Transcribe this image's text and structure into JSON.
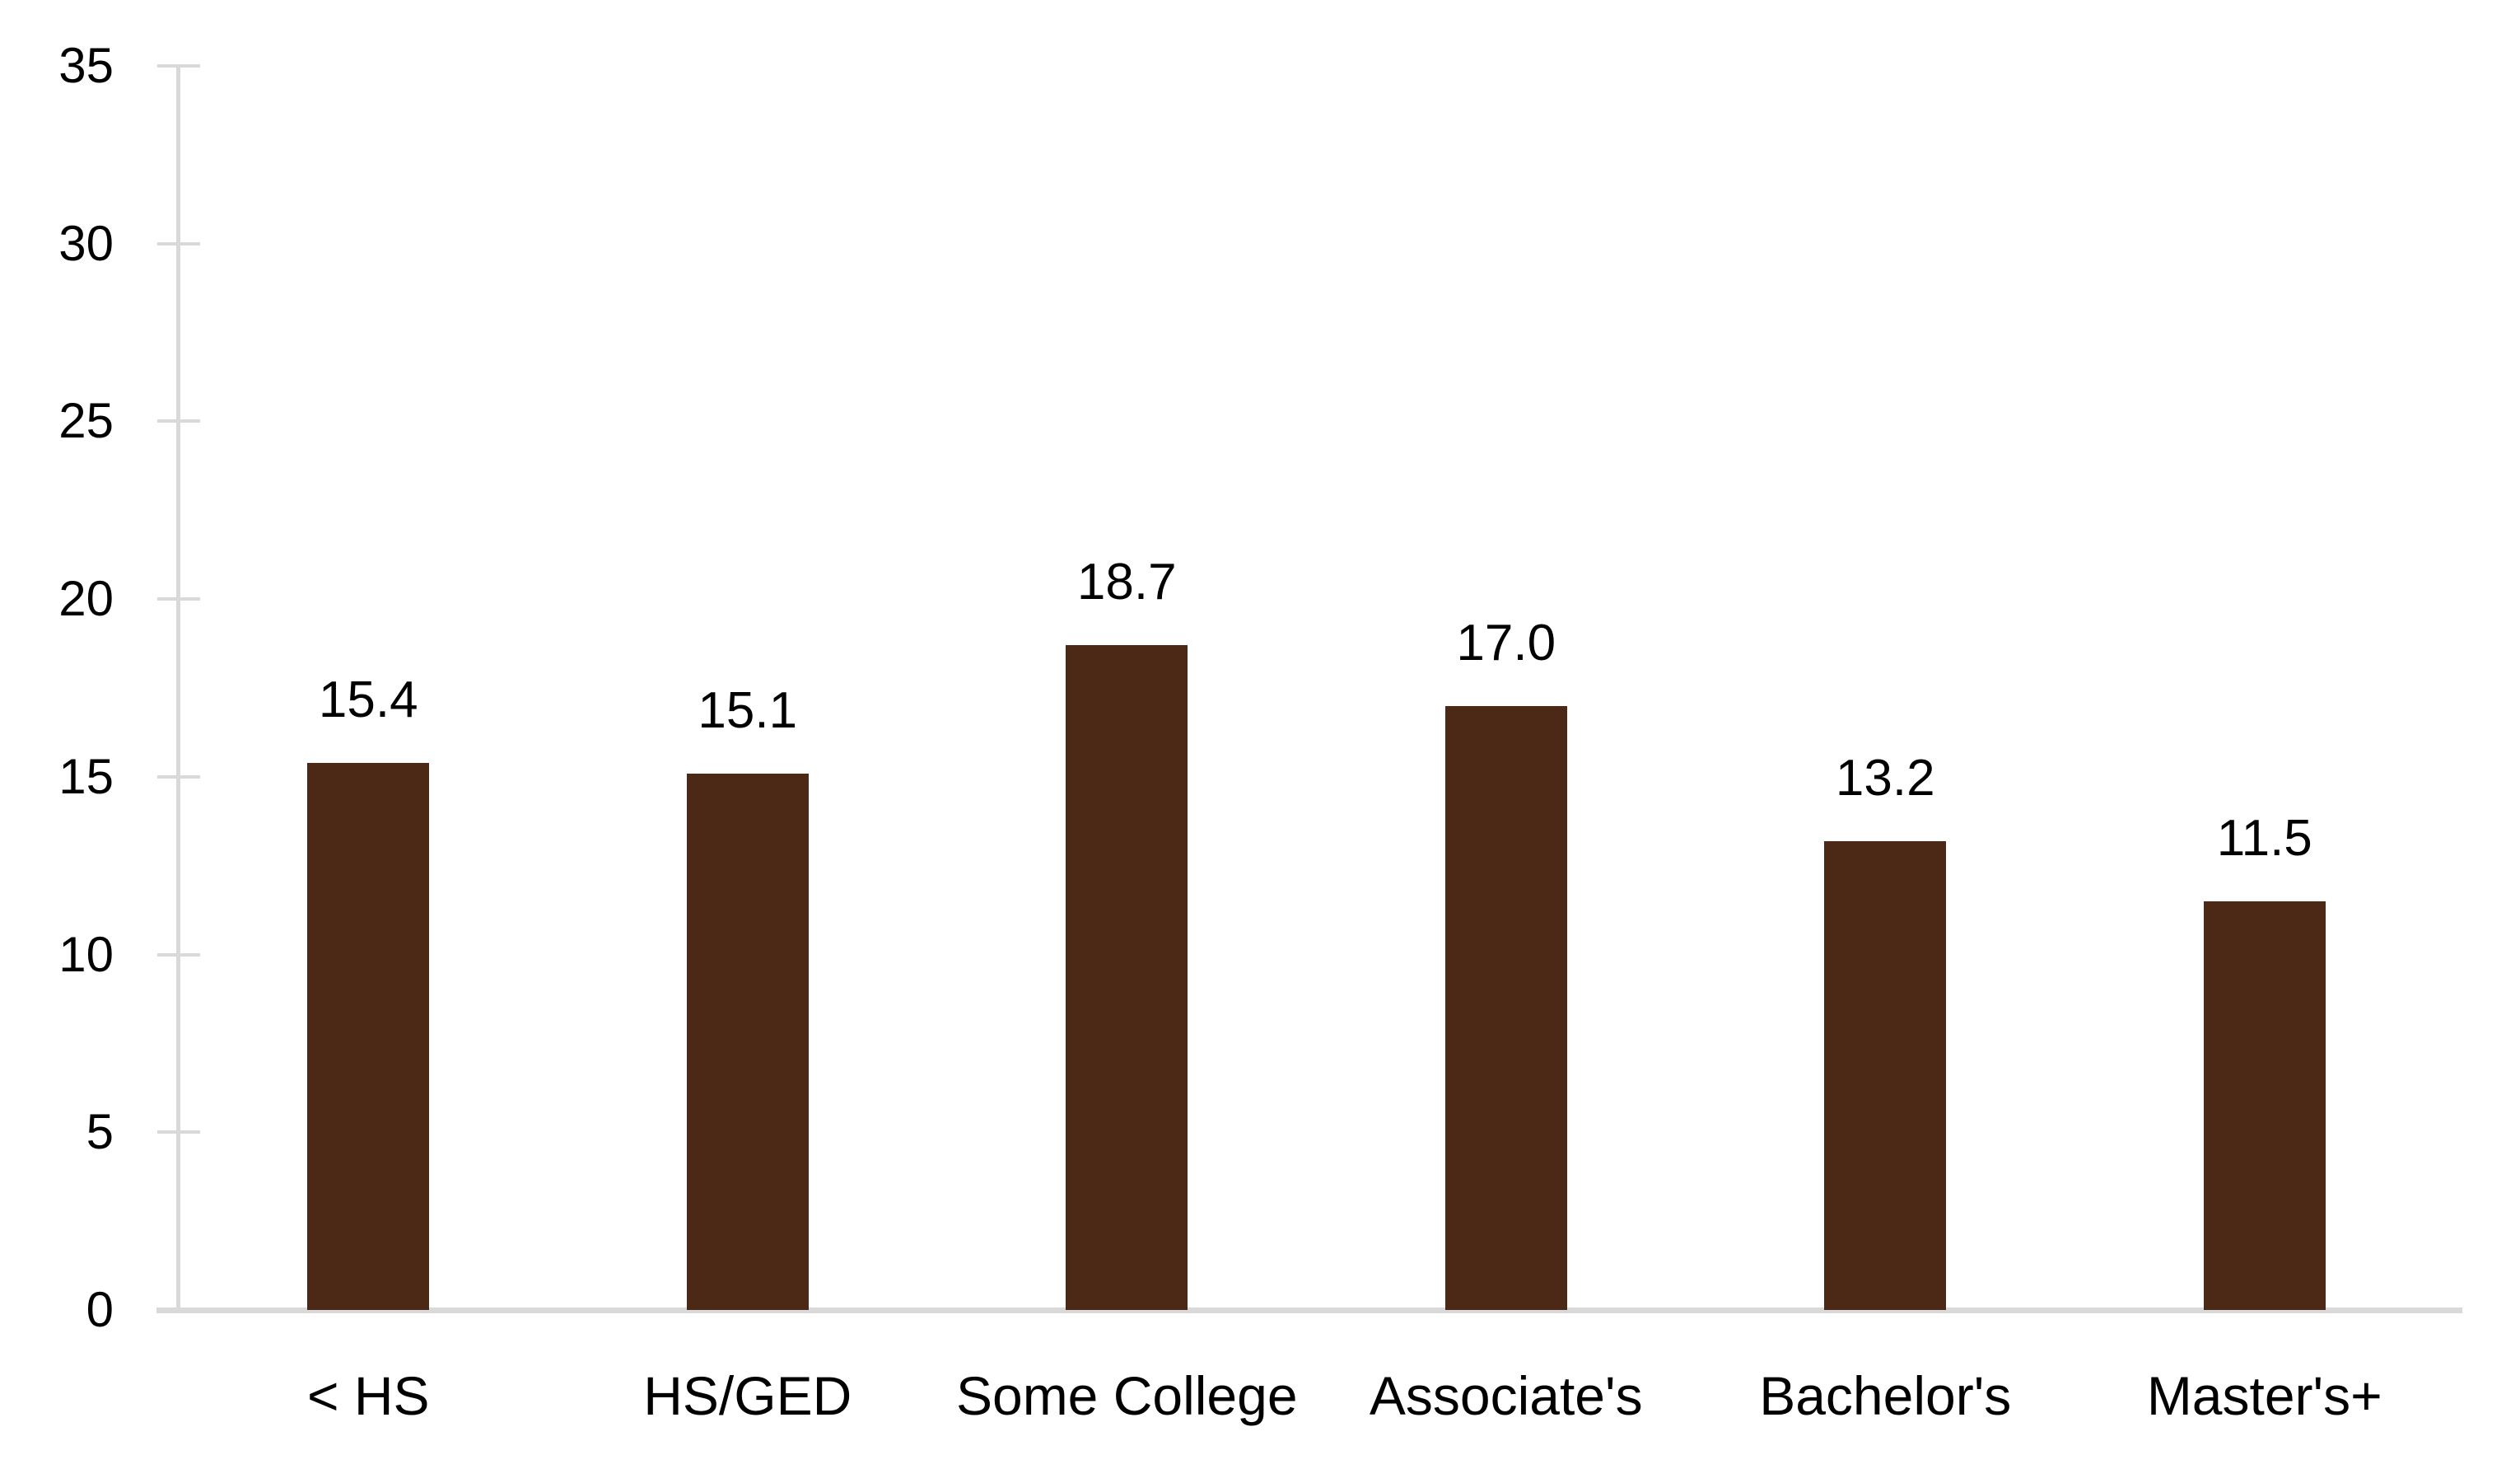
{
  "chart_data": {
    "type": "bar",
    "title": "",
    "xlabel": "",
    "ylabel": "",
    "categories": [
      "< HS",
      "HS/GED",
      "Some College",
      "Associate's",
      "Bachelor's",
      "Master's+"
    ],
    "values": [
      15.4,
      15.1,
      18.7,
      17.0,
      13.2,
      11.5
    ],
    "data_labels": [
      "15.4",
      "15.1",
      "18.7",
      "17.0",
      "13.2",
      "11.5"
    ],
    "ylim": [
      0,
      35
    ],
    "yticks": [
      0,
      5,
      10,
      15,
      20,
      25,
      30,
      35
    ],
    "ytick_labels": [
      "0",
      "5",
      "10",
      "15",
      "20",
      "25",
      "30",
      "35"
    ],
    "grid": false,
    "legend": false,
    "bar_color": "#4C2817",
    "axis_color": "#D9D9D9",
    "text_color": "#000000"
  }
}
